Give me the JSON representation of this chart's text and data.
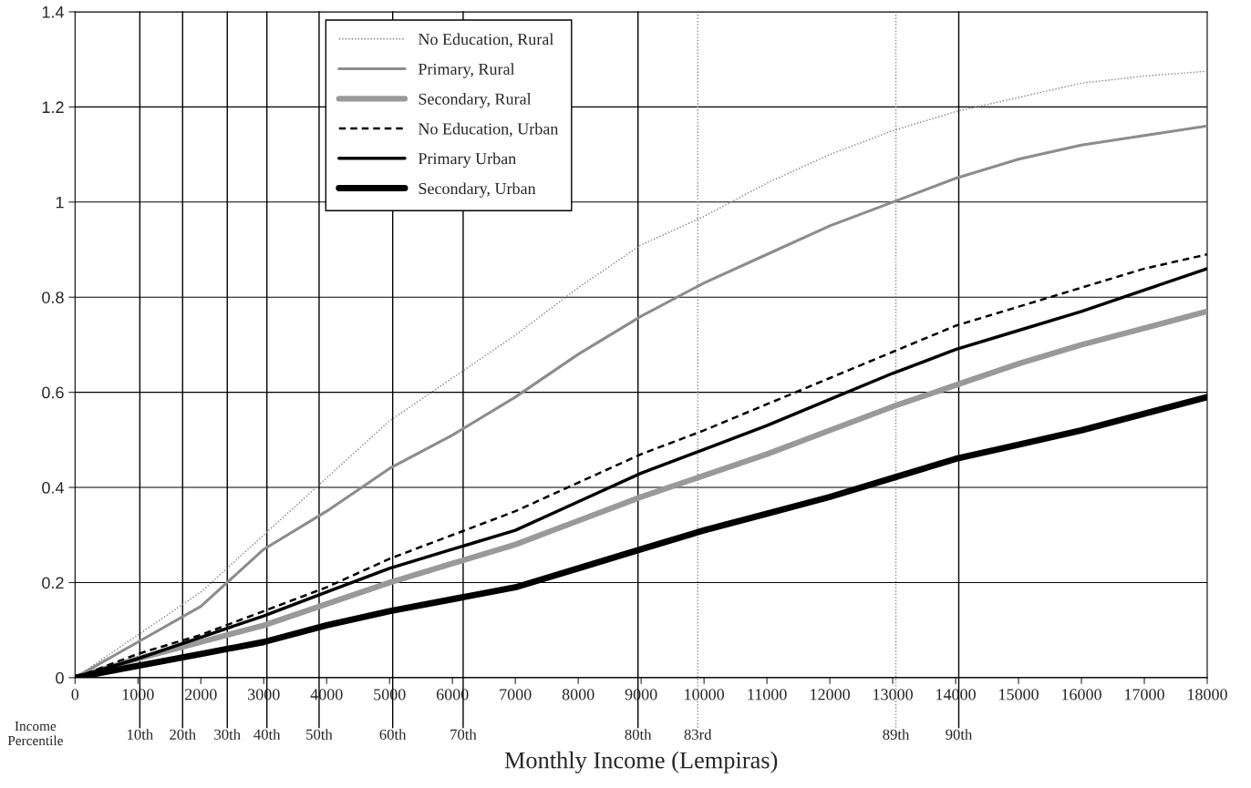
{
  "chart_data": {
    "type": "line",
    "xlabel": "Monthly Income (Lempiras)",
    "xlim": [
      0,
      18000
    ],
    "ylim": [
      0,
      1.4
    ],
    "xticks": [
      0,
      1000,
      2000,
      3000,
      4000,
      5000,
      6000,
      7000,
      8000,
      9000,
      10000,
      11000,
      12000,
      13000,
      14000,
      15000,
      16000,
      17000,
      18000
    ],
    "yticks": [
      0,
      0.2,
      0.4,
      0.6,
      0.8,
      1,
      1.2,
      1.4
    ],
    "grid": "y",
    "legend": "top",
    "marker": "none",
    "x": [
      0,
      1000,
      2000,
      3000,
      4000,
      5000,
      6000,
      7000,
      8000,
      9000,
      10000,
      11000,
      12000,
      13000,
      14000,
      15000,
      16000,
      17000,
      18000
    ],
    "series": [
      {
        "name": "No Education, Rural",
        "color": "#808080",
        "line_style": "dotted",
        "values": [
          0,
          0.09,
          0.18,
          0.3,
          0.42,
          0.54,
          0.63,
          0.72,
          0.82,
          0.91,
          0.97,
          1.04,
          1.1,
          1.15,
          1.19,
          1.22,
          1.25,
          1.265,
          1.275
        ]
      },
      {
        "name": "Primary, Rural",
        "color": "#8c8c8c",
        "line_style": "solid",
        "values": [
          0,
          0.075,
          0.15,
          0.27,
          0.35,
          0.44,
          0.51,
          0.59,
          0.68,
          0.76,
          0.83,
          0.89,
          0.95,
          1.0,
          1.05,
          1.09,
          1.12,
          1.14,
          1.16
        ]
      },
      {
        "name": "Secondary, Rural",
        "color": "#999999",
        "line_style": "solid",
        "values": [
          0,
          0.04,
          0.075,
          0.11,
          0.155,
          0.2,
          0.24,
          0.28,
          0.33,
          0.38,
          0.425,
          0.47,
          0.52,
          0.57,
          0.615,
          0.66,
          0.7,
          0.735,
          0.77
        ]
      },
      {
        "name": "No Education, Urban",
        "color": "#000000",
        "line_style": "dashed",
        "values": [
          0,
          0.05,
          0.09,
          0.14,
          0.19,
          0.25,
          0.3,
          0.35,
          0.41,
          0.47,
          0.52,
          0.575,
          0.63,
          0.685,
          0.74,
          0.78,
          0.82,
          0.86,
          0.89
        ]
      },
      {
        "name": "Primary Urban",
        "color": "#000000",
        "line_style": "solid",
        "values": [
          0,
          0.04,
          0.085,
          0.13,
          0.18,
          0.23,
          0.27,
          0.31,
          0.37,
          0.43,
          0.48,
          0.53,
          0.585,
          0.64,
          0.69,
          0.73,
          0.77,
          0.815,
          0.86
        ]
      },
      {
        "name": "Secondary, Urban",
        "color": "#000000",
        "line_style": "solid",
        "values": [
          0,
          0.025,
          0.05,
          0.075,
          0.11,
          0.14,
          0.165,
          0.19,
          0.23,
          0.27,
          0.31,
          0.345,
          0.38,
          0.42,
          0.46,
          0.49,
          0.52,
          0.555,
          0.59
        ]
      }
    ],
    "ref_lines": [
      {
        "axis": "x",
        "value": 1030,
        "label": "10th",
        "color": "#000000",
        "line_style": "solid"
      },
      {
        "axis": "x",
        "value": 1710,
        "label": "20th",
        "color": "#000000",
        "line_style": "solid"
      },
      {
        "axis": "x",
        "value": 2420,
        "label": "30th",
        "color": "#000000",
        "line_style": "solid"
      },
      {
        "axis": "x",
        "value": 3050,
        "label": "40th",
        "color": "#000000",
        "line_style": "solid"
      },
      {
        "axis": "x",
        "value": 3880,
        "label": "50th",
        "color": "#000000",
        "line_style": "solid"
      },
      {
        "axis": "x",
        "value": 5050,
        "label": "60th",
        "color": "#000000",
        "line_style": "solid"
      },
      {
        "axis": "x",
        "value": 6170,
        "label": "70th",
        "color": "#000000",
        "line_style": "solid"
      },
      {
        "axis": "x",
        "value": 8950,
        "label": "80th",
        "color": "#000000",
        "line_style": "solid"
      },
      {
        "axis": "x",
        "value": 9900,
        "label": "83rd",
        "color": "#888888",
        "line_style": "dotted"
      },
      {
        "axis": "x",
        "value": 13050,
        "label": "89th",
        "color": "#888888",
        "line_style": "dotted"
      },
      {
        "axis": "x",
        "value": 14050,
        "label": "90th",
        "color": "#000000",
        "line_style": "solid"
      }
    ],
    "annotations": [
      "Income Percentile"
    ]
  }
}
